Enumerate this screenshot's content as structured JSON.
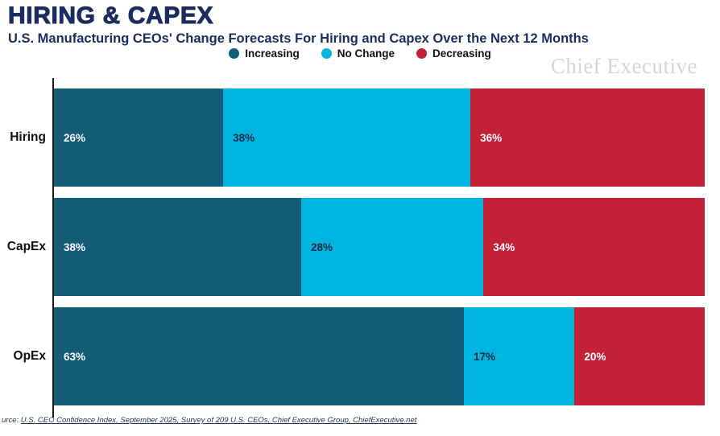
{
  "header": {
    "title": "HIRING & CAPEX",
    "subtitle": "U.S. Manufacturing CEOs' Change Forecasts For Hiring and Capex Over the Next 12 Months"
  },
  "watermark": "Chief Executive",
  "legend": [
    {
      "label": "Increasing",
      "color": "#135d77"
    },
    {
      "label": "No Change",
      "color": "#00b5e0"
    },
    {
      "label": "Decreasing",
      "color": "#c42038"
    }
  ],
  "chart_data": {
    "type": "bar",
    "orientation": "horizontal",
    "stacked": true,
    "title": "HIRING & CAPEX",
    "subtitle": "U.S. Manufacturing CEOs' Change Forecasts For Hiring and Capex Over the Next 12 Months",
    "categories": [
      "Hiring",
      "CapEx",
      "OpEx"
    ],
    "series": [
      {
        "name": "Increasing",
        "color": "#135d77",
        "label_color": "#ffffff",
        "values": [
          26,
          38,
          63
        ]
      },
      {
        "name": "No Change",
        "color": "#00b5e0",
        "label_color": "#1b2b45",
        "values": [
          38,
          28,
          17
        ]
      },
      {
        "name": "Decreasing",
        "color": "#c42038",
        "label_color": "#ffffff",
        "values": [
          36,
          34,
          20
        ]
      }
    ],
    "value_suffix": "%",
    "xlim": [
      0,
      100
    ],
    "legend_position": "top",
    "grid": false
  },
  "source": {
    "prefix": "urce: ",
    "link": "U.S. CEO Confidence Index, September 2025, Survey of 209 U.S. CEOs, Chief Executive Group, ChiefExecutive.net"
  },
  "colors": {
    "title_navy": "#1b2d5e",
    "axis": "#1a1a1a",
    "watermark_gray": "#d6d6d6"
  }
}
